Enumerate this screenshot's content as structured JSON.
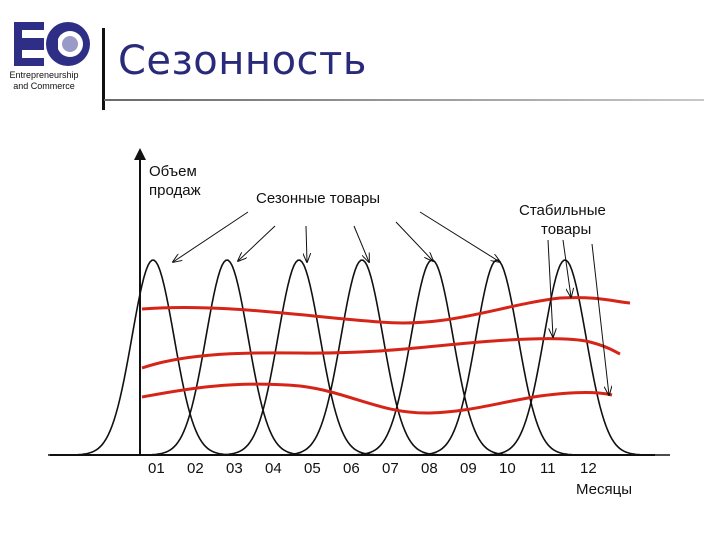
{
  "header": {
    "title": "Сезонность",
    "logo_text": "EC",
    "logo_caption_1": "Entrepreneurship",
    "logo_caption_2": "and Commerce"
  },
  "diagram": {
    "y_label_1": "Объем",
    "y_label_2": "продаж",
    "seasonal_label": "Сезонные товары",
    "stable_label_1": "Стабильные",
    "stable_label_2": "товары",
    "x_label": "Месяцы",
    "months": [
      "01",
      "02",
      "03",
      "04",
      "05",
      "06",
      "07",
      "08",
      "09",
      "10",
      "11",
      "12"
    ],
    "colors": {
      "curves": "#111111",
      "stable": "#d62418",
      "logo_blue": "#2e2e86"
    }
  }
}
